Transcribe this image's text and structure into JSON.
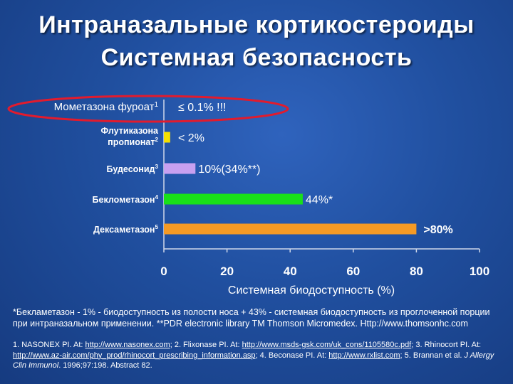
{
  "title": {
    "line1": "Интраназальные кортикостероиды",
    "line2": "Системная безопасность"
  },
  "chart_data": {
    "type": "bar",
    "orientation": "horizontal",
    "categories": [
      {
        "name": "Мометазона фуроат",
        "sup": "1"
      },
      {
        "name": "Флутиказона",
        "name2": "пропионат",
        "sup": "2"
      },
      {
        "name": "Будесонид",
        "sup": "3"
      },
      {
        "name": "Беклометазон",
        "sup": "4"
      },
      {
        "name": "Дексаметазон",
        "sup": "5"
      }
    ],
    "values": [
      0.1,
      2,
      10,
      44,
      80
    ],
    "value_labels": [
      "≤ 0.1%   !!!",
      "< 2%",
      "10%(34%**)",
      "44%*",
      ">80%"
    ],
    "colors": [
      "#2ea0e0",
      "#f5e000",
      "#c8a0f0",
      "#19e019",
      "#f59a25"
    ],
    "highlight_color": "#e21b2d",
    "xlabel": "Системная биодоступность (%)",
    "xlim": [
      0,
      100
    ],
    "xticks": [
      "0",
      "20",
      "40",
      "60",
      "80",
      "100"
    ]
  },
  "footnote": "*Бекламетазон - 1% - биодоступность из полости носа + 43% - системная биодоступность из проглоченной порции при интраназальном применении. **PDR electronic library TM Thomson Micromedex. Http://www.thomsonhc.com",
  "refs": {
    "p1": "1. NASONEX PI. At: ",
    "l1": "http://www.nasonex.com",
    "p2": "; 2. Flixonase PI. At: ",
    "l2": "http://www.msds-gsk.com/uk_cons/1105580c.pdf",
    "p3": "; 3. Rhinocort PI. At: ",
    "l3": "http://www.az-air.com/phy_prod/rhinocort_prescribing_information.asp",
    "p4": "; 4. Beconase PI. At: ",
    "l4": "http://www.rxlist.com",
    "p5": "; 5. Brannan et al. ",
    "journal": "J Allergy Clin Immunol",
    "p6": ". 1996;97:198. Abstract 82."
  }
}
